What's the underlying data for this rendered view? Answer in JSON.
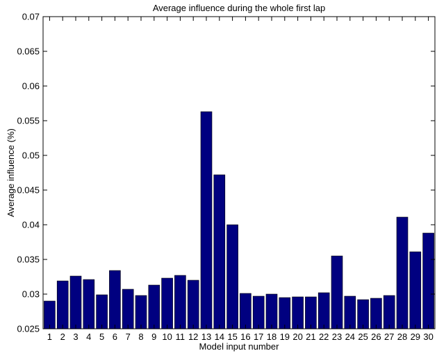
{
  "chart_data": {
    "type": "bar",
    "title": "Average influence during the whole first lap",
    "xlabel": "Model input number",
    "ylabel": "Average influence (%)",
    "categories": [
      "1",
      "2",
      "3",
      "4",
      "5",
      "6",
      "7",
      "8",
      "9",
      "10",
      "11",
      "12",
      "13",
      "14",
      "15",
      "16",
      "17",
      "18",
      "19",
      "20",
      "21",
      "22",
      "23",
      "24",
      "25",
      "26",
      "27",
      "28",
      "29",
      "30"
    ],
    "values": [
      0.029,
      0.0319,
      0.0326,
      0.0321,
      0.0299,
      0.0334,
      0.0307,
      0.0298,
      0.0313,
      0.0323,
      0.0327,
      0.032,
      0.0563,
      0.0472,
      0.04,
      0.0301,
      0.0297,
      0.03,
      0.0295,
      0.0296,
      0.0296,
      0.0302,
      0.0355,
      0.0297,
      0.0292,
      0.0294,
      0.0298,
      0.0411,
      0.0361,
      0.0388
    ],
    "ylim": [
      0.025,
      0.07
    ],
    "yticks": [
      "0.025",
      "0.03",
      "0.035",
      "0.04",
      "0.045",
      "0.05",
      "0.055",
      "0.06",
      "0.065",
      "0.07"
    ],
    "colors": {
      "bar": "#000080",
      "axis": "#000000",
      "background": "#ffffff"
    },
    "grid": false,
    "legend": "none"
  }
}
